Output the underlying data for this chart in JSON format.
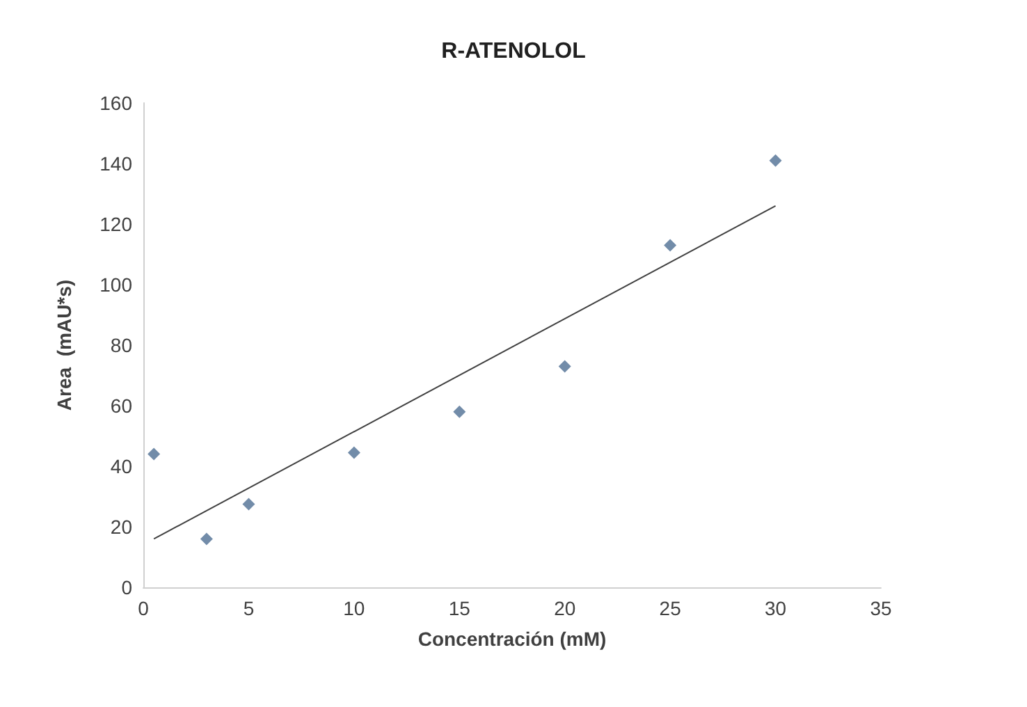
{
  "chart_data": {
    "type": "scatter",
    "title": "R-ATENOLOL",
    "xlabel": "Concentración (mM)",
    "ylabel": "Area  (mAU*s)",
    "x": [
      0.5,
      3,
      5,
      10,
      15,
      20,
      25,
      30
    ],
    "series": [
      {
        "color": "#4f6f94",
        "marker": "diamond",
        "values": [
          44,
          16,
          27.5,
          44.5,
          58,
          73,
          113,
          141
        ]
      },
      {
        "type": "line",
        "color": "#404040",
        "marker": "none",
        "x": [
          0.5,
          30
        ],
        "values": [
          16,
          126
        ]
      }
    ],
    "xlim": [
      0,
      35
    ],
    "xticks": [
      0,
      5,
      10,
      15,
      20,
      25,
      30,
      35
    ],
    "ylim": [
      0,
      160
    ],
    "yticks": [
      0,
      20,
      40,
      60,
      80,
      100,
      120,
      140,
      160
    ],
    "grid": false
  }
}
